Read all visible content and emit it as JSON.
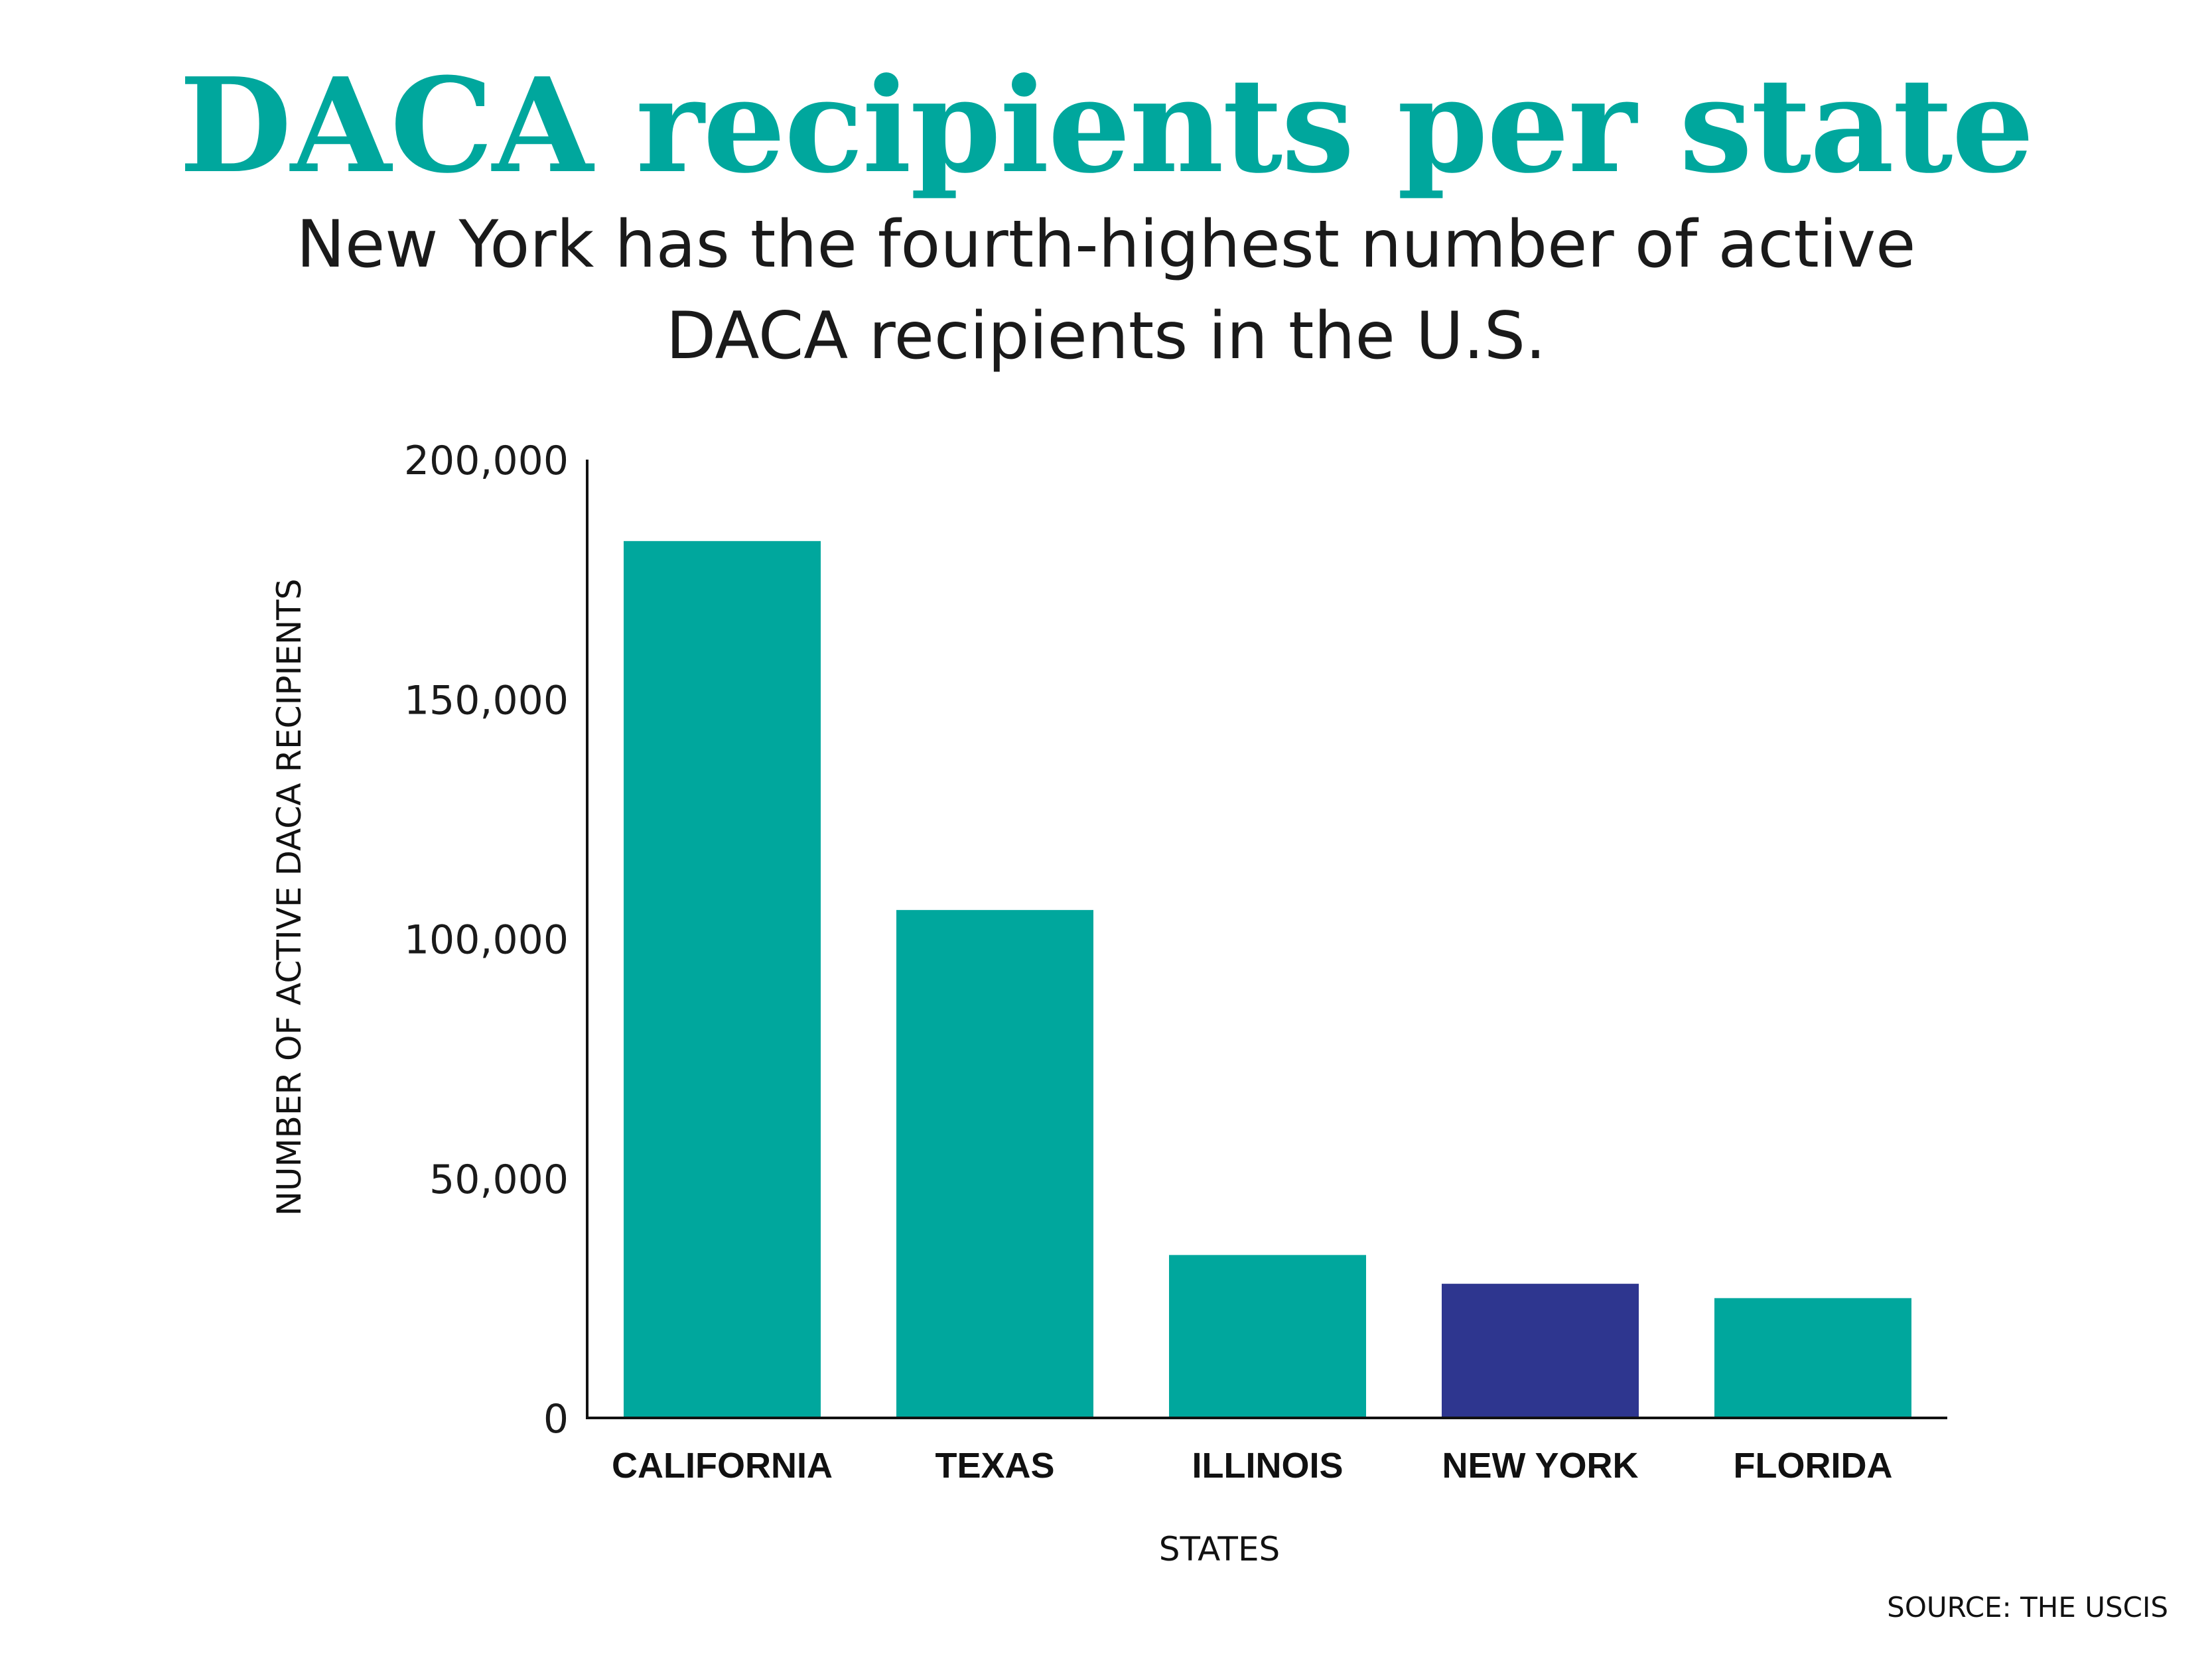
{
  "colors": {
    "accent": "#00a79d",
    "highlight": "#2e368f",
    "axis": "#111111"
  },
  "chart_data": {
    "type": "bar",
    "title": "DACA recipients per state",
    "subtitle": "New York has the fourth-highest number of active DACA recipients in the U.S.",
    "xlabel": "STATES",
    "ylabel": "NUMBER OF ACTIVE DACA RECIPIENTS",
    "source": "SOURCE: THE USCIS",
    "categories": [
      "CALIFORNIA",
      "TEXAS",
      "ILLINOIS",
      "NEW YORK",
      "FLORIDA"
    ],
    "values": [
      183000,
      106000,
      34000,
      28000,
      25000
    ],
    "highlight_category": "NEW YORK",
    "ylim": [
      0,
      200000
    ],
    "yticks": [
      0,
      50000,
      100000,
      150000,
      200000
    ],
    "ytick_labels": [
      "0",
      "50,000",
      "100,000",
      "150,000",
      "200,000"
    ],
    "grid": false,
    "legend": "none"
  }
}
